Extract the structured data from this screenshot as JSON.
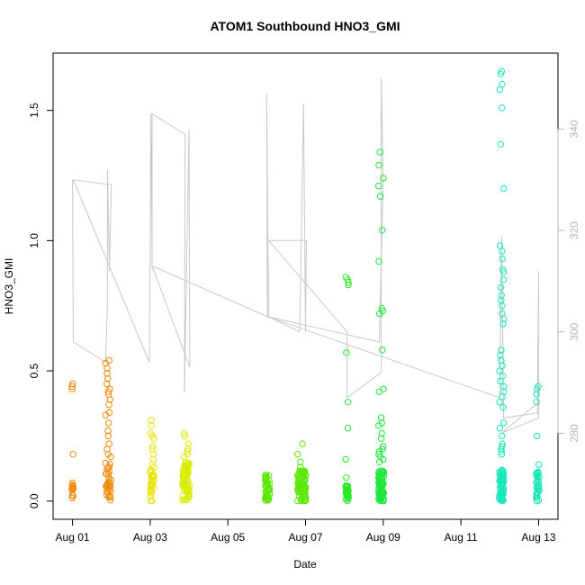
{
  "chart_data": {
    "type": "scatter",
    "title": "ATOM1 Southbound HNO3_GMI",
    "xlabel": "Date",
    "ylabel": "HNO3_GMI",
    "x_axis": {
      "type": "date",
      "range": [
        "2016-07-31T12:00",
        "2016-08-13T12:00"
      ],
      "ticks": [
        {
          "value": "2016-08-01",
          "label": "Aug 01"
        },
        {
          "value": "2016-08-03",
          "label": "Aug 03"
        },
        {
          "value": "2016-08-05",
          "label": "Aug 05"
        },
        {
          "value": "2016-08-07",
          "label": "Aug 07"
        },
        {
          "value": "2016-08-09",
          "label": "Aug 09"
        },
        {
          "value": "2016-08-11",
          "label": "Aug 11"
        },
        {
          "value": "2016-08-13",
          "label": "Aug 13"
        }
      ]
    },
    "y_axis_left": {
      "range": [
        -0.07,
        1.72
      ],
      "ticks": [
        {
          "value": 0.0,
          "label": "0.0"
        },
        {
          "value": 0.5,
          "label": "0.5"
        },
        {
          "value": 1.0,
          "label": "1.0"
        },
        {
          "value": 1.5,
          "label": "1.5"
        }
      ]
    },
    "y_axis_right": {
      "range": [
        263,
        355
      ],
      "color": "#b4b4b4",
      "ticks": [
        {
          "value": 280,
          "label": "280"
        },
        {
          "value": 300,
          "label": "300"
        },
        {
          "value": 320,
          "label": "320"
        },
        {
          "value": 340,
          "label": "340"
        }
      ]
    },
    "grid": false,
    "legend": "none",
    "scatter_groups": [
      {
        "day": "2016-08-01",
        "x_center": 0.0,
        "x_spread": 0.02,
        "color": "#f08a0b",
        "n_low": 14,
        "low_max": 0.07,
        "high_values": [
          0.45,
          0.44,
          0.43,
          0.18
        ]
      },
      {
        "day": "2016-08-01",
        "x_center": 0.92,
        "x_spread": 0.07,
        "color": "#f08a0b",
        "n_low": 30,
        "low_max": 0.15,
        "high_values": [
          0.54,
          0.53,
          0.51,
          0.49,
          0.47,
          0.45,
          0.43,
          0.42,
          0.41,
          0.39,
          0.37,
          0.34,
          0.33,
          0.3,
          0.27,
          0.25,
          0.22,
          0.2,
          0.18,
          0.17
        ]
      },
      {
        "day": "2016-08-03",
        "x_center": 2.05,
        "x_spread": 0.05,
        "color": "#e8e40c",
        "n_low": 30,
        "low_max": 0.14,
        "high_values": [
          0.31,
          0.29,
          0.26,
          0.25,
          0.24,
          0.21,
          0.2,
          0.18,
          0.16
        ]
      },
      {
        "day": "2016-08-03",
        "x_center": 2.92,
        "x_spread": 0.09,
        "color": "#d8ec06",
        "n_low": 70,
        "low_max": 0.15,
        "high_values": [
          0.26,
          0.25,
          0.22,
          0.2,
          0.19,
          0.18,
          0.17
        ]
      },
      {
        "day": "2016-08-06",
        "x_center": 5.02,
        "x_spread": 0.06,
        "color": "#5ee60c",
        "n_low": 40,
        "low_max": 0.1,
        "high_values": [
          0.1,
          0.09
        ]
      },
      {
        "day": "2016-08-06",
        "x_center": 5.9,
        "x_spread": 0.11,
        "color": "#5ee60c",
        "n_low": 90,
        "low_max": 0.12,
        "high_values": [
          0.22,
          0.18,
          0.15,
          0.13
        ]
      },
      {
        "day": "2016-08-08",
        "x_center": 7.07,
        "x_spread": 0.04,
        "color": "#2ce82a",
        "n_low": 30,
        "low_max": 0.06,
        "high_values": [
          0.86,
          0.85,
          0.84,
          0.83,
          0.57,
          0.38,
          0.28,
          0.16,
          0.09
        ]
      },
      {
        "day": "2016-08-08",
        "x_center": 7.95,
        "x_spread": 0.07,
        "color": "#22e640",
        "n_low": 80,
        "low_max": 0.12,
        "high_values": [
          1.34,
          1.29,
          1.24,
          1.21,
          1.17,
          1.04,
          0.92,
          0.74,
          0.73,
          0.72,
          0.58,
          0.43,
          0.42,
          0.32,
          0.3,
          0.29,
          0.26,
          0.24,
          0.21,
          0.2,
          0.19,
          0.18,
          0.17,
          0.16,
          0.15
        ]
      },
      {
        "day": "2016-08-12",
        "x_center": 11.05,
        "x_spread": 0.06,
        "color": "#1ae6b8",
        "n_low": 60,
        "low_max": 0.12,
        "high_values": [
          1.65,
          1.64,
          1.6,
          1.58,
          1.51,
          1.37,
          1.2,
          0.98,
          0.96,
          0.93,
          0.89,
          0.88,
          0.85,
          0.82,
          0.79,
          0.77,
          0.75,
          0.72,
          0.7,
          0.68,
          0.58,
          0.56,
          0.54,
          0.52,
          0.5,
          0.48,
          0.46,
          0.44,
          0.42,
          0.4,
          0.38,
          0.36,
          0.3,
          0.28,
          0.25,
          0.22,
          0.21,
          0.2,
          0.19,
          0.18
        ]
      },
      {
        "day": "2016-08-13",
        "x_center": 11.98,
        "x_spread": 0.04,
        "color": "#1ae6b8",
        "n_low": 30,
        "low_max": 0.12,
        "high_values": [
          0.44,
          0.43,
          0.41,
          0.38,
          0.25,
          0.14
        ]
      }
    ],
    "pressure_line": {
      "color": "#c8c8c8",
      "axis": "right",
      "note_path": [
        [
          0.0,
          330
        ],
        [
          0.02,
          298
        ],
        [
          0.85,
          294
        ],
        [
          0.9,
          306
        ],
        [
          0.9,
          332
        ],
        [
          0.95,
          312
        ],
        [
          1.0,
          329
        ],
        [
          0.02,
          330
        ],
        [
          1.98,
          294
        ],
        [
          2.02,
          343
        ],
        [
          2.05,
          313
        ],
        [
          2.05,
          343
        ],
        [
          2.9,
          339
        ],
        [
          2.88,
          288
        ],
        [
          3.0,
          340
        ],
        [
          3.02,
          293
        ],
        [
          2.05,
          313
        ],
        [
          5.02,
          303
        ],
        [
          5.0,
          347
        ],
        [
          5.05,
          303
        ],
        [
          5.85,
          300
        ],
        [
          5.95,
          345
        ],
        [
          6.0,
          300
        ],
        [
          6.02,
          318
        ],
        [
          5.05,
          318
        ],
        [
          7.07,
          300
        ],
        [
          7.07,
          287
        ],
        [
          7.95,
          292
        ],
        [
          7.95,
          350
        ],
        [
          8.0,
          330
        ],
        [
          7.9,
          298
        ],
        [
          5.02,
          303
        ],
        [
          11.0,
          287
        ],
        [
          11.05,
          319
        ],
        [
          11.1,
          283
        ],
        [
          11.97,
          284
        ],
        [
          12.0,
          312
        ],
        [
          12.0,
          283
        ],
        [
          11.05,
          280
        ],
        [
          11.98,
          286
        ]
      ]
    }
  }
}
